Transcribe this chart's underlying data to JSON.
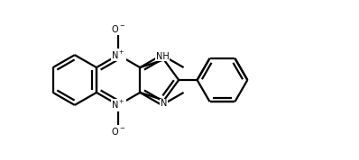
{
  "background": "#ffffff",
  "line_color": "#000000",
  "line_width": 1.6,
  "figsize": [
    3.98,
    1.78
  ],
  "dpi": 100
}
